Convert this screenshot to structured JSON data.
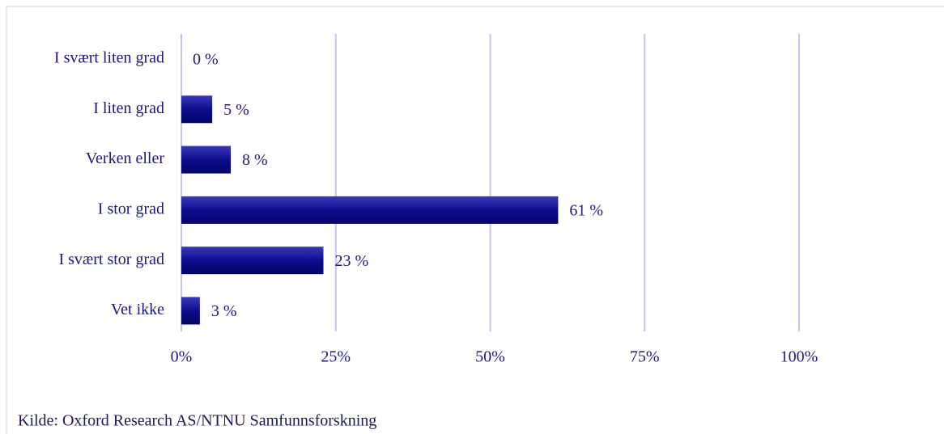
{
  "chart_data": {
    "type": "bar",
    "orientation": "horizontal",
    "categories": [
      "I svært liten grad",
      "I liten grad",
      "Verken eller",
      "I stor grad",
      "I svært stor grad",
      "Vet ikke"
    ],
    "values": [
      0,
      5,
      8,
      61,
      23,
      3
    ],
    "value_labels": [
      "0 %",
      "5 %",
      "8 %",
      "61 %",
      "23 %",
      "3 %"
    ],
    "color": "#0c0c8e",
    "xlim": [
      0,
      100
    ],
    "xticks": [
      {
        "value": 0,
        "label": "0%"
      },
      {
        "value": 25,
        "label": "25%"
      },
      {
        "value": 50,
        "label": "50%"
      },
      {
        "value": 75,
        "label": "75%"
      },
      {
        "value": 100,
        "label": "100%"
      }
    ],
    "grid": true,
    "source": "Kilde: Oxford Research AS/NTNU Samfunnsforskning"
  }
}
